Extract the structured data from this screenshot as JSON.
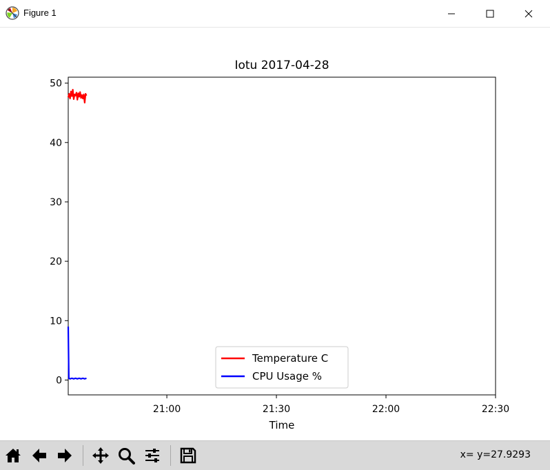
{
  "window": {
    "title": "Figure 1",
    "icon": "matplotlib-icon",
    "controls": [
      "minimize-icon",
      "maximize-icon",
      "close-icon"
    ]
  },
  "toolbar": {
    "buttons": [
      "home-icon",
      "back-arrow-icon",
      "forward-arrow-icon",
      "pan-icon",
      "zoom-icon",
      "subplots-config-icon",
      "save-icon"
    ],
    "coordinates": "x= y=27.9293"
  },
  "chart_data": {
    "type": "line",
    "title": "Iotu 2017-04-28",
    "xlabel": "Time",
    "ylabel": "",
    "x_axis_type": "time",
    "xlim": [
      "20:33",
      "22:30"
    ],
    "ylim": [
      -2.5,
      51
    ],
    "xticks": [
      "21:00",
      "21:30",
      "22:00",
      "22:30"
    ],
    "yticks": [
      0,
      10,
      20,
      30,
      40,
      50
    ],
    "grid": false,
    "legend": {
      "location": "lower center"
    },
    "series": [
      {
        "name": "Temperature C",
        "color": "#ff0000",
        "points": [
          [
            "20:33:00",
            47.6
          ],
          [
            "20:33:15",
            48.2
          ],
          [
            "20:33:30",
            47.4
          ],
          [
            "20:33:45",
            48.6
          ],
          [
            "20:34:00",
            47.8
          ],
          [
            "20:34:15",
            48.9
          ],
          [
            "20:34:30",
            47.3
          ],
          [
            "20:34:45",
            48.1
          ],
          [
            "20:35:00",
            47.9
          ],
          [
            "20:35:15",
            48.4
          ],
          [
            "20:35:30",
            47.2
          ],
          [
            "20:35:45",
            48.3
          ],
          [
            "20:36:00",
            47.7
          ],
          [
            "20:36:15",
            48.5
          ],
          [
            "20:36:30",
            47.5
          ],
          [
            "20:36:45",
            48.0
          ],
          [
            "20:37:00",
            47.4
          ],
          [
            "20:37:15",
            48.1
          ],
          [
            "20:37:30",
            46.7
          ],
          [
            "20:37:45",
            48.2
          ],
          [
            "20:38:00",
            47.9
          ]
        ]
      },
      {
        "name": "CPU Usage %",
        "color": "#0000ff",
        "points": [
          [
            "20:33:00",
            9.0
          ],
          [
            "20:33:10",
            0.3
          ],
          [
            "20:33:30",
            0.2
          ],
          [
            "20:34:00",
            0.3
          ],
          [
            "20:34:30",
            0.2
          ],
          [
            "20:35:00",
            0.3
          ],
          [
            "20:35:30",
            0.2
          ],
          [
            "20:36:00",
            0.3
          ],
          [
            "20:36:30",
            0.2
          ],
          [
            "20:37:00",
            0.3
          ],
          [
            "20:37:30",
            0.2
          ],
          [
            "20:38:00",
            0.3
          ]
        ]
      }
    ]
  }
}
